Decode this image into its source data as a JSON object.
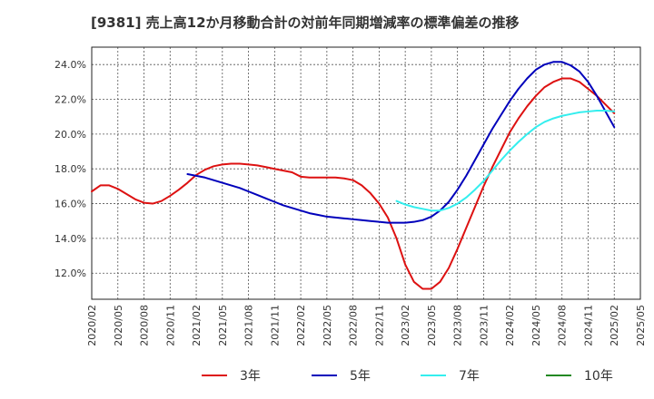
{
  "chart_data": {
    "type": "line",
    "title": "[9381]  売上高12か月移動合計の対前年同期増減率の標準偏差の推移",
    "y_ticks": [
      "12.0%",
      "14.0%",
      "16.0%",
      "18.0%",
      "20.0%",
      "22.0%",
      "24.0%"
    ],
    "y_tick_values": [
      12,
      14,
      16,
      18,
      20,
      22,
      24
    ],
    "ylim": [
      10.5,
      25.0
    ],
    "x_ticks": [
      "2020/02",
      "2020/05",
      "2020/08",
      "2020/11",
      "2021/02",
      "2021/05",
      "2021/08",
      "2021/11",
      "2022/02",
      "2022/05",
      "2022/08",
      "2022/11",
      "2023/02",
      "2023/05",
      "2023/08",
      "2023/11",
      "2024/02",
      "2024/05",
      "2024/08",
      "2024/11",
      "2025/02",
      "2025/05"
    ],
    "xlim": [
      "2020/02",
      "2025/05"
    ],
    "grid": true,
    "legend_position": "bottom",
    "series": [
      {
        "name": "3年",
        "color": "#dd1111",
        "points": [
          [
            "2020/02",
            16.7
          ],
          [
            "2020/03",
            17.05
          ],
          [
            "2020/04",
            17.05
          ],
          [
            "2020/05",
            16.85
          ],
          [
            "2020/06",
            16.55
          ],
          [
            "2020/07",
            16.25
          ],
          [
            "2020/08",
            16.05
          ],
          [
            "2020/09",
            16.0
          ],
          [
            "2020/10",
            16.15
          ],
          [
            "2020/11",
            16.45
          ],
          [
            "2020/12",
            16.8
          ],
          [
            "2021/01",
            17.2
          ],
          [
            "2021/02",
            17.65
          ],
          [
            "2021/03",
            17.95
          ],
          [
            "2021/04",
            18.15
          ],
          [
            "2021/05",
            18.25
          ],
          [
            "2021/06",
            18.3
          ],
          [
            "2021/07",
            18.3
          ],
          [
            "2021/08",
            18.25
          ],
          [
            "2021/09",
            18.2
          ],
          [
            "2021/10",
            18.1
          ],
          [
            "2021/11",
            18.0
          ],
          [
            "2021/12",
            17.9
          ],
          [
            "2022/01",
            17.8
          ],
          [
            "2022/02",
            17.55
          ],
          [
            "2022/03",
            17.5
          ],
          [
            "2022/04",
            17.5
          ],
          [
            "2022/05",
            17.5
          ],
          [
            "2022/06",
            17.5
          ],
          [
            "2022/07",
            17.45
          ],
          [
            "2022/08",
            17.35
          ],
          [
            "2022/09",
            17.05
          ],
          [
            "2022/10",
            16.6
          ],
          [
            "2022/11",
            16.0
          ],
          [
            "2022/12",
            15.2
          ],
          [
            "2023/01",
            14.0
          ],
          [
            "2023/02",
            12.5
          ],
          [
            "2023/03",
            11.5
          ],
          [
            "2023/04",
            11.1
          ],
          [
            "2023/05",
            11.1
          ],
          [
            "2023/06",
            11.5
          ],
          [
            "2023/07",
            12.3
          ],
          [
            "2023/08",
            13.4
          ],
          [
            "2023/09",
            14.6
          ],
          [
            "2023/10",
            15.8
          ],
          [
            "2023/11",
            17.0
          ],
          [
            "2023/12",
            18.1
          ],
          [
            "2024/01",
            19.1
          ],
          [
            "2024/02",
            20.1
          ],
          [
            "2024/03",
            20.9
          ],
          [
            "2024/04",
            21.6
          ],
          [
            "2024/05",
            22.2
          ],
          [
            "2024/06",
            22.7
          ],
          [
            "2024/07",
            23.0
          ],
          [
            "2024/08",
            23.2
          ],
          [
            "2024/09",
            23.2
          ],
          [
            "2024/10",
            23.0
          ],
          [
            "2024/11",
            22.6
          ],
          [
            "2024/12",
            22.2
          ],
          [
            "2025/01",
            21.7
          ],
          [
            "2025/02",
            21.2
          ]
        ]
      },
      {
        "name": "5年",
        "color": "#0000bb",
        "points": [
          [
            "2021/01",
            17.7
          ],
          [
            "2021/02",
            17.6
          ],
          [
            "2021/03",
            17.5
          ],
          [
            "2021/04",
            17.35
          ],
          [
            "2021/05",
            17.2
          ],
          [
            "2021/06",
            17.05
          ],
          [
            "2021/07",
            16.9
          ],
          [
            "2021/08",
            16.7
          ],
          [
            "2021/09",
            16.5
          ],
          [
            "2021/10",
            16.3
          ],
          [
            "2021/11",
            16.1
          ],
          [
            "2021/12",
            15.9
          ],
          [
            "2022/01",
            15.75
          ],
          [
            "2022/02",
            15.6
          ],
          [
            "2022/03",
            15.45
          ],
          [
            "2022/04",
            15.35
          ],
          [
            "2022/05",
            15.25
          ],
          [
            "2022/06",
            15.2
          ],
          [
            "2022/07",
            15.15
          ],
          [
            "2022/08",
            15.1
          ],
          [
            "2022/09",
            15.05
          ],
          [
            "2022/10",
            15.0
          ],
          [
            "2022/11",
            14.95
          ],
          [
            "2022/12",
            14.9
          ],
          [
            "2023/01",
            14.9
          ],
          [
            "2023/02",
            14.9
          ],
          [
            "2023/03",
            14.95
          ],
          [
            "2023/04",
            15.05
          ],
          [
            "2023/05",
            15.25
          ],
          [
            "2023/06",
            15.6
          ],
          [
            "2023/07",
            16.1
          ],
          [
            "2023/08",
            16.8
          ],
          [
            "2023/09",
            17.6
          ],
          [
            "2023/10",
            18.5
          ],
          [
            "2023/11",
            19.4
          ],
          [
            "2023/12",
            20.3
          ],
          [
            "2024/01",
            21.1
          ],
          [
            "2024/02",
            21.9
          ],
          [
            "2024/03",
            22.6
          ],
          [
            "2024/04",
            23.2
          ],
          [
            "2024/05",
            23.7
          ],
          [
            "2024/06",
            24.0
          ],
          [
            "2024/07",
            24.15
          ],
          [
            "2024/08",
            24.15
          ],
          [
            "2024/09",
            23.95
          ],
          [
            "2024/10",
            23.6
          ],
          [
            "2024/11",
            23.0
          ],
          [
            "2024/12",
            22.2
          ],
          [
            "2025/01",
            21.3
          ],
          [
            "2025/02",
            20.4
          ]
        ]
      },
      {
        "name": "7年",
        "color": "#33eeee",
        "points": [
          [
            "2023/01",
            16.15
          ],
          [
            "2023/02",
            15.95
          ],
          [
            "2023/03",
            15.8
          ],
          [
            "2023/04",
            15.7
          ],
          [
            "2023/05",
            15.6
          ],
          [
            "2023/06",
            15.6
          ],
          [
            "2023/07",
            15.75
          ],
          [
            "2023/08",
            16.0
          ],
          [
            "2023/09",
            16.35
          ],
          [
            "2023/10",
            16.8
          ],
          [
            "2023/11",
            17.3
          ],
          [
            "2023/12",
            17.9
          ],
          [
            "2024/01",
            18.5
          ],
          [
            "2024/02",
            19.05
          ],
          [
            "2024/03",
            19.55
          ],
          [
            "2024/04",
            20.0
          ],
          [
            "2024/05",
            20.4
          ],
          [
            "2024/06",
            20.7
          ],
          [
            "2024/07",
            20.9
          ],
          [
            "2024/08",
            21.05
          ],
          [
            "2024/09",
            21.15
          ],
          [
            "2024/10",
            21.25
          ],
          [
            "2024/11",
            21.3
          ],
          [
            "2024/12",
            21.35
          ],
          [
            "2025/01",
            21.35
          ],
          [
            "2025/02",
            21.3
          ]
        ]
      },
      {
        "name": "10年",
        "color": "#228822",
        "points": []
      }
    ]
  }
}
